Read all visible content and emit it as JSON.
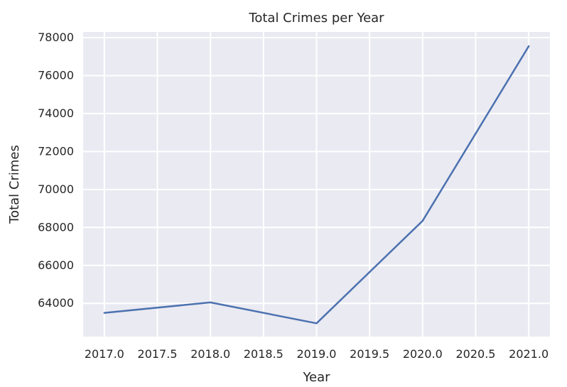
{
  "chart_data": {
    "type": "line",
    "title": "Total Crimes per Year",
    "xlabel": "Year",
    "ylabel": "Total Crimes",
    "x": [
      2017,
      2018,
      2019,
      2020,
      2021
    ],
    "series": [
      {
        "values": [
          63500,
          64050,
          62950,
          68350,
          77550
        ],
        "color": "#4c72b0"
      }
    ],
    "xlim": [
      2016.8,
      2021.2
    ],
    "ylim": [
      62250,
      78300
    ],
    "x_ticks": [
      2017.0,
      2017.5,
      2018.0,
      2018.5,
      2019.0,
      2019.5,
      2020.0,
      2020.5,
      2021.0
    ],
    "x_tick_labels": [
      "2017.0",
      "2017.5",
      "2018.0",
      "2018.5",
      "2019.0",
      "2019.5",
      "2020.0",
      "2020.5",
      "2021.0"
    ],
    "y_ticks": [
      64000,
      66000,
      68000,
      70000,
      72000,
      74000,
      76000,
      78000
    ],
    "y_tick_labels": [
      "64000",
      "66000",
      "68000",
      "70000",
      "72000",
      "74000",
      "76000",
      "78000"
    ],
    "grid": true,
    "style": {
      "background": "#eaeaf2",
      "grid_color": "#ffffff"
    }
  }
}
